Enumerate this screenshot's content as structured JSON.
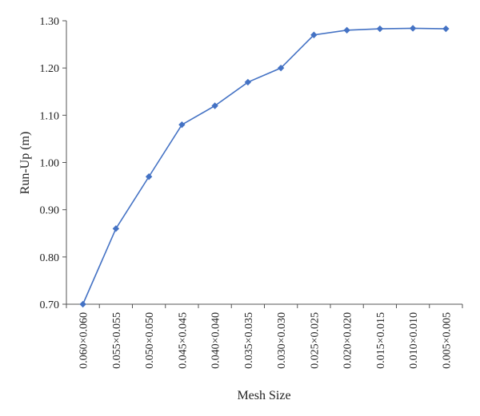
{
  "chart_data": {
    "type": "line",
    "xlabel": "Mesh Size",
    "ylabel": "Run-Up (m)",
    "ylim": [
      0.7,
      1.3
    ],
    "yticks": [
      "0.70",
      "0.80",
      "0.90",
      "1.00",
      "1.10",
      "1.20",
      "1.30"
    ],
    "grid": false,
    "categories": [
      "0.060×0.060",
      "0.055×0.055",
      "0.050×0.050",
      "0.045×0.045",
      "0.040×0.040",
      "0.035×0.035",
      "0.030×0.030",
      "0.025×0.025",
      "0.020×0.020",
      "0.015×0.015",
      "0.010×0.010",
      "0.005×0.005"
    ],
    "series": [
      {
        "values": [
          0.7,
          0.86,
          0.97,
          1.08,
          1.12,
          1.17,
          1.2,
          1.27,
          1.28,
          1.283,
          1.284,
          1.283
        ],
        "color": "#4472c4",
        "marker": "diamond"
      }
    ]
  }
}
